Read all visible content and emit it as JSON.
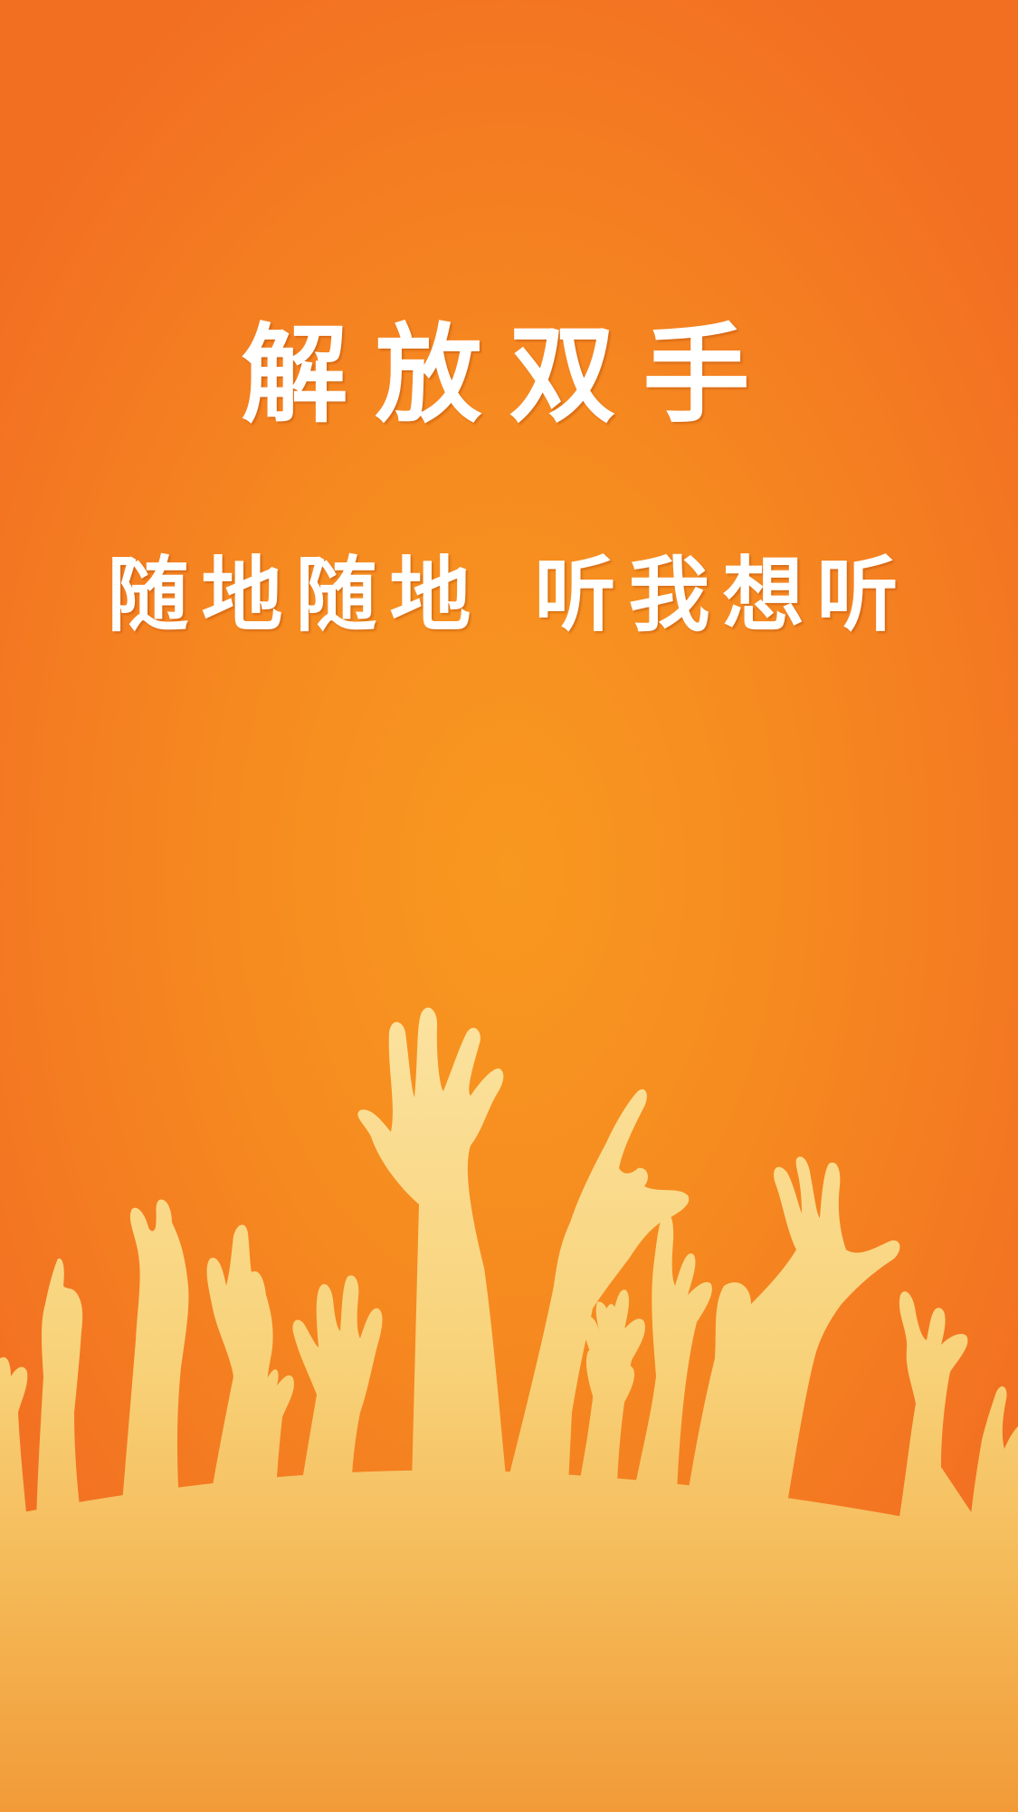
{
  "splash": {
    "headline": "解放双手",
    "tagline_part1": "随地随地",
    "tagline_part2": "听我想听"
  },
  "colors": {
    "background_center": "#f8981f",
    "background_edge": "#f26f22",
    "text": "#ffffff",
    "hands_top": "#fbe3a0",
    "hands_bottom": "#f29a38"
  }
}
